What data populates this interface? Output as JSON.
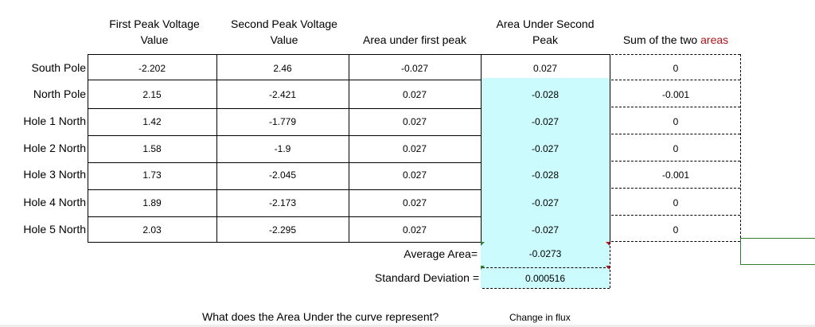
{
  "headers": {
    "first_peak_line1": "First Peak Voltage",
    "first_peak_line2": "Value",
    "second_peak_line1": "Second Peak Voltage",
    "second_peak_line2": "Value",
    "area_first": "Area under first peak",
    "area_second_line1": "Area Under Second",
    "area_second_line2": "Peak",
    "sum_prefix": "Sum of the two ",
    "sum_suffix": "areas"
  },
  "rows": [
    {
      "label": "South Pole",
      "first": "-2.202",
      "second": "2.46",
      "area1": "-0.027",
      "area2": "0.027",
      "sum": "0"
    },
    {
      "label": "North Pole",
      "first": "2.15",
      "second": "-2.421",
      "area1": "0.027",
      "area2": "-0.028",
      "sum": "-0.001"
    },
    {
      "label": "Hole 1 North",
      "first": "1.42",
      "second": "-1.779",
      "area1": "0.027",
      "area2": "-0.027",
      "sum": "0"
    },
    {
      "label": "Hole 2 North",
      "first": "1.58",
      "second": "-1.9",
      "area1": "0.027",
      "area2": "-0.027",
      "sum": "0"
    },
    {
      "label": "Hole 3 North",
      "first": "1.73",
      "second": "-2.045",
      "area1": "0.027",
      "area2": "-0.028",
      "sum": "-0.001"
    },
    {
      "label": "Hole 4 North",
      "first": "1.89",
      "second": "-2.173",
      "area1": "0.027",
      "area2": "-0.027",
      "sum": "0"
    },
    {
      "label": "Hole 5 North",
      "first": "2.03",
      "second": "-2.295",
      "area1": "0.027",
      "area2": "-0.027",
      "sum": "0"
    }
  ],
  "stats": {
    "avg_label": "Average Area=",
    "avg_value": "-0.0273",
    "std_label": "Standard Deviation =",
    "std_value": "0.000516"
  },
  "question": {
    "text": "What does the Area Under the curve represent?",
    "answer": "Change in flux"
  },
  "colors": {
    "highlight": "#ccfbfd",
    "accent_red": "#b3121b",
    "selection_green": "#2e7d32"
  }
}
